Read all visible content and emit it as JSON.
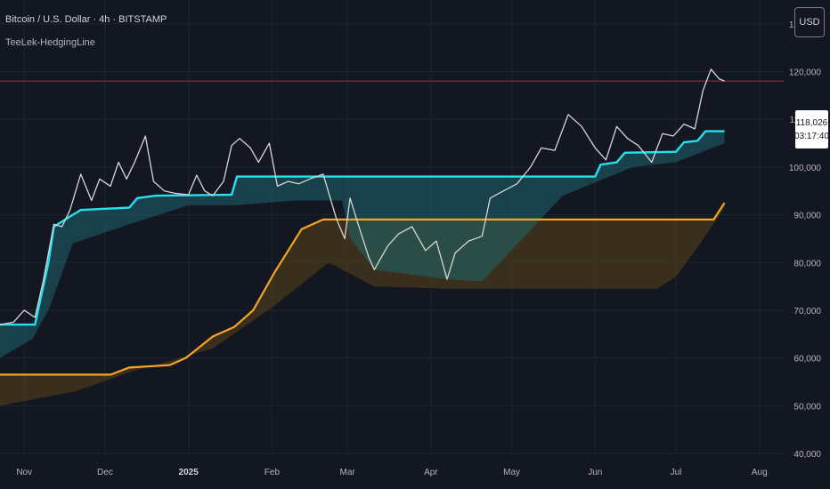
{
  "header": {
    "title": "Bitcoin / U.S. Dollar · 4h · BITSTAMP",
    "indicator": "TeeLek-HedgingLine",
    "currency": "USD"
  },
  "price_tag": {
    "price": "118,026",
    "countdown": "03:17:40"
  },
  "colors": {
    "background": "#131722",
    "price": "#d6d6d6",
    "fast_line": "#26e0f0",
    "slow_line": "#f5a623",
    "fast_fill": "#1e6b73",
    "slow_fill": "#5a4418",
    "grid": "#1f2430",
    "current_price_line": "#8b3a3a"
  },
  "chart_data": {
    "type": "line",
    "ylim": [
      40000,
      135000
    ],
    "xlim": [
      "2024-10-23",
      "2025-08-10"
    ],
    "x_ticks": [
      {
        "label": "Nov",
        "date": "2024-11-01"
      },
      {
        "label": "Dec",
        "date": "2024-12-01"
      },
      {
        "label": "2025",
        "date": "2025-01-01",
        "bold": true
      },
      {
        "label": "Feb",
        "date": "2025-02-01"
      },
      {
        "label": "Mar",
        "date": "2025-03-01"
      },
      {
        "label": "Apr",
        "date": "2025-04-01"
      },
      {
        "label": "May",
        "date": "2025-05-01"
      },
      {
        "label": "Jun",
        "date": "2025-06-01"
      },
      {
        "label": "Jul",
        "date": "2025-07-01"
      },
      {
        "label": "Aug",
        "date": "2025-08-01"
      }
    ],
    "y_ticks": [
      {
        "label": "40,000",
        "value": 40000
      },
      {
        "label": "50,000",
        "value": 50000
      },
      {
        "label": "60,000",
        "value": 60000
      },
      {
        "label": "70,000",
        "value": 70000
      },
      {
        "label": "80,000",
        "value": 80000
      },
      {
        "label": "90,000",
        "value": 90000
      },
      {
        "label": "100,000",
        "value": 100000
      },
      {
        "label": "110,000",
        "value": 110000
      },
      {
        "label": "120,000",
        "value": 120000
      },
      {
        "label": "130,000",
        "value": 130000
      }
    ],
    "current_price": 118026,
    "series": [
      {
        "key": "price",
        "x": [
          "2024-10-23",
          "2024-10-28",
          "2024-11-01",
          "2024-11-05",
          "2024-11-08",
          "2024-11-12",
          "2024-11-15",
          "2024-11-18",
          "2024-11-22",
          "2024-11-26",
          "2024-11-29",
          "2024-12-03",
          "2024-12-06",
          "2024-12-09",
          "2024-12-12",
          "2024-12-16",
          "2024-12-19",
          "2024-12-23",
          "2024-12-27",
          "2025-01-01",
          "2025-01-04",
          "2025-01-07",
          "2025-01-10",
          "2025-01-14",
          "2025-01-17",
          "2025-01-20",
          "2025-01-24",
          "2025-01-27",
          "2025-01-31",
          "2025-02-03",
          "2025-02-07",
          "2025-02-11",
          "2025-02-15",
          "2025-02-20",
          "2025-02-25",
          "2025-02-28",
          "2025-03-02",
          "2025-03-05",
          "2025-03-09",
          "2025-03-11",
          "2025-03-16",
          "2025-03-20",
          "2025-03-25",
          "2025-03-30",
          "2025-04-03",
          "2025-04-07",
          "2025-04-10",
          "2025-04-15",
          "2025-04-20",
          "2025-04-23",
          "2025-04-28",
          "2025-05-03",
          "2025-05-08",
          "2025-05-12",
          "2025-05-17",
          "2025-05-22",
          "2025-05-27",
          "2025-06-01",
          "2025-06-05",
          "2025-06-09",
          "2025-06-13",
          "2025-06-17",
          "2025-06-22",
          "2025-06-26",
          "2025-06-30",
          "2025-07-04",
          "2025-07-08",
          "2025-07-11",
          "2025-07-14",
          "2025-07-17",
          "2025-07-19"
        ],
        "values": [
          67000,
          67500,
          70000,
          68500,
          76000,
          88000,
          87500,
          91000,
          98500,
          93000,
          97500,
          96000,
          101000,
          97500,
          101000,
          106500,
          97000,
          95000,
          94500,
          94200,
          98300,
          95000,
          94000,
          97000,
          104500,
          106000,
          104000,
          101000,
          105000,
          96000,
          97000,
          96500,
          97500,
          98500,
          89000,
          85000,
          93500,
          88000,
          81000,
          78500,
          83500,
          86000,
          87500,
          82500,
          84500,
          76500,
          82000,
          84500,
          85500,
          93500,
          95000,
          96500,
          100000,
          104000,
          103500,
          111000,
          108500,
          104000,
          101500,
          108500,
          106000,
          104500,
          101000,
          107000,
          106500,
          109000,
          108000,
          116000,
          120500,
          118500,
          118026
        ]
      },
      {
        "key": "fast",
        "x": [
          "2024-10-23",
          "2024-11-04",
          "2024-11-05",
          "2024-11-10",
          "2024-11-12",
          "2024-11-19",
          "2024-11-22",
          "2024-12-10",
          "2024-12-13",
          "2024-12-20",
          "2025-01-17",
          "2025-01-19",
          "2025-06-01",
          "2025-06-03",
          "2025-06-09",
          "2025-06-12",
          "2025-07-01",
          "2025-07-04",
          "2025-07-09",
          "2025-07-12",
          "2025-07-19"
        ],
        "values": [
          67000,
          67000,
          67000,
          80000,
          87500,
          90000,
          91000,
          91500,
          93500,
          94000,
          94200,
          98000,
          98000,
          100500,
          101000,
          103000,
          103200,
          105200,
          105500,
          107500,
          107500
        ]
      },
      {
        "key": "fast_band_low",
        "x": [
          "2024-10-23",
          "2024-11-04",
          "2024-11-10",
          "2024-11-19",
          "2024-12-10",
          "2025-01-01",
          "2025-01-19",
          "2025-02-10",
          "2025-02-27",
          "2025-03-02",
          "2025-03-11",
          "2025-04-07",
          "2025-04-20",
          "2025-05-05",
          "2025-05-20",
          "2025-06-15",
          "2025-07-01",
          "2025-07-19"
        ],
        "values": [
          60000,
          64000,
          70000,
          84000,
          88000,
          92000,
          92000,
          93000,
          93000,
          85000,
          78500,
          76500,
          76000,
          85000,
          94000,
          100000,
          101000,
          105000
        ]
      },
      {
        "key": "slow",
        "x": [
          "2024-10-23",
          "2024-12-03",
          "2024-12-10",
          "2024-12-25",
          "2024-12-31",
          "2025-01-10",
          "2025-01-18",
          "2025-01-25",
          "2025-02-02",
          "2025-02-12",
          "2025-02-20",
          "2025-02-25",
          "2025-07-15",
          "2025-07-19"
        ],
        "values": [
          56500,
          56500,
          58000,
          58500,
          60000,
          64500,
          66500,
          70000,
          78000,
          87000,
          89000,
          89000,
          89000,
          92500
        ]
      },
      {
        "key": "slow_band_low",
        "x": [
          "2024-10-23",
          "2024-11-20",
          "2024-12-10",
          "2025-01-10",
          "2025-02-02",
          "2025-02-22",
          "2025-03-11",
          "2025-04-07",
          "2025-06-24",
          "2025-07-01",
          "2025-07-10",
          "2025-07-19"
        ],
        "values": [
          50000,
          53000,
          57000,
          62000,
          71000,
          80000,
          75000,
          74500,
          74500,
          77000,
          84000,
          91500
        ]
      }
    ]
  }
}
